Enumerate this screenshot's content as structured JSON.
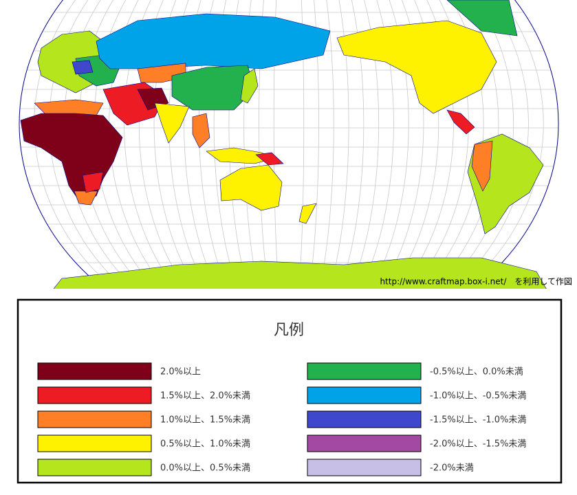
{
  "map": {
    "credit": "http://www.craftmap.box-i.net/　を利用して作図"
  },
  "legend": {
    "title": "凡例",
    "items": [
      {
        "label": "2.0%以上",
        "color": "#7f0019"
      },
      {
        "label": "1.5%以上、2.0%未満",
        "color": "#ed1c24"
      },
      {
        "label": "1.0%以上、1.5%未満",
        "color": "#ff7f27"
      },
      {
        "label": "0.5%以上、1.0%未満",
        "color": "#fff200"
      },
      {
        "label": "0.0%以上、0.5%未満",
        "color": "#b5e61d"
      },
      {
        "label": "-0.5%以上、0.0%未満",
        "color": "#22b14c"
      },
      {
        "label": "-1.0%以上、-0.5%未満",
        "color": "#00a2e8"
      },
      {
        "label": "-1.5%以上、-1.0%未満",
        "color": "#3f48cc"
      },
      {
        "label": "-2.0%以上、-1.5%未満",
        "color": "#a349a4"
      },
      {
        "label": "-2.0%未満",
        "color": "#c8bfe7"
      }
    ]
  }
}
